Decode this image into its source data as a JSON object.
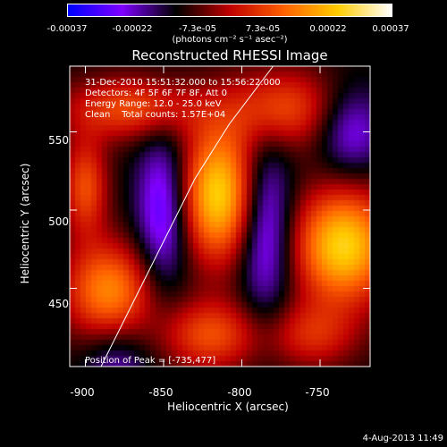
{
  "colorbar": {
    "ticks": [
      "-0.00037",
      "-0.00022",
      "-7.3e-05",
      "7.3e-05",
      "0.00022",
      "0.00037"
    ],
    "units": "(photons cm⁻² s⁻¹ asec⁻²)",
    "gradient": [
      "#0000ff",
      "#8000ff",
      "#000000",
      "#c00000",
      "#ff6000",
      "#ffcc00",
      "#ffffff"
    ]
  },
  "chart_data": {
    "type": "heatmap",
    "title": "Reconstructed RHESSI Image",
    "xlabel": "Heliocentric X (arcsec)",
    "ylabel": "Heliocentric Y (arcsec)",
    "xlim": [
      -910,
      -718
    ],
    "ylim": [
      400,
      592
    ],
    "xticks": [
      -900,
      -850,
      -800,
      -750
    ],
    "yticks": [
      450,
      500,
      550
    ],
    "colormap_range": [
      -0.00037,
      0.00037
    ],
    "peak": [
      -735,
      477
    ],
    "blobs": [
      {
        "x": -815,
        "y": 510,
        "amp": 1.0,
        "sx": 18,
        "sy": 30
      },
      {
        "x": -735,
        "y": 477,
        "amp": 1.0,
        "sx": 22,
        "sy": 26
      },
      {
        "x": -885,
        "y": 448,
        "amp": 0.75,
        "sx": 20,
        "sy": 22
      },
      {
        "x": -870,
        "y": 565,
        "amp": 0.55,
        "sx": 30,
        "sy": 14
      },
      {
        "x": -775,
        "y": 565,
        "amp": 0.55,
        "sx": 25,
        "sy": 18
      },
      {
        "x": -820,
        "y": 420,
        "amp": 0.55,
        "sx": 22,
        "sy": 16
      },
      {
        "x": -755,
        "y": 420,
        "amp": 0.4,
        "sx": 20,
        "sy": 15
      },
      {
        "x": -900,
        "y": 515,
        "amp": 0.55,
        "sx": 10,
        "sy": 22
      },
      {
        "x": -850,
        "y": 500,
        "amp": -0.55,
        "sx": 12,
        "sy": 35
      },
      {
        "x": -785,
        "y": 490,
        "amp": -0.55,
        "sx": 12,
        "sy": 40
      },
      {
        "x": -880,
        "y": 400,
        "amp": -0.3,
        "sx": 15,
        "sy": 20
      },
      {
        "x": -730,
        "y": 550,
        "amp": -0.4,
        "sx": 15,
        "sy": 20
      }
    ],
    "limb_curve": [
      [
        -890,
        400
      ],
      [
        -870,
        440
      ],
      [
        -850,
        480
      ],
      [
        -830,
        520
      ],
      [
        -808,
        555
      ],
      [
        -780,
        592
      ]
    ]
  },
  "plot": {
    "info_lines": [
      "31-Dec-2010 15:51:32.000 to 15:56:22.000",
      "Detectors: 4F 5F 6F 7F 8F, Att 0",
      "Energy Range: 12.0 - 25.0 keV",
      "Clean    Total counts: 1.57E+04"
    ],
    "peak_text": "Position of Peak = [-735,477]"
  },
  "timestamp": "4-Aug-2013 11:49"
}
